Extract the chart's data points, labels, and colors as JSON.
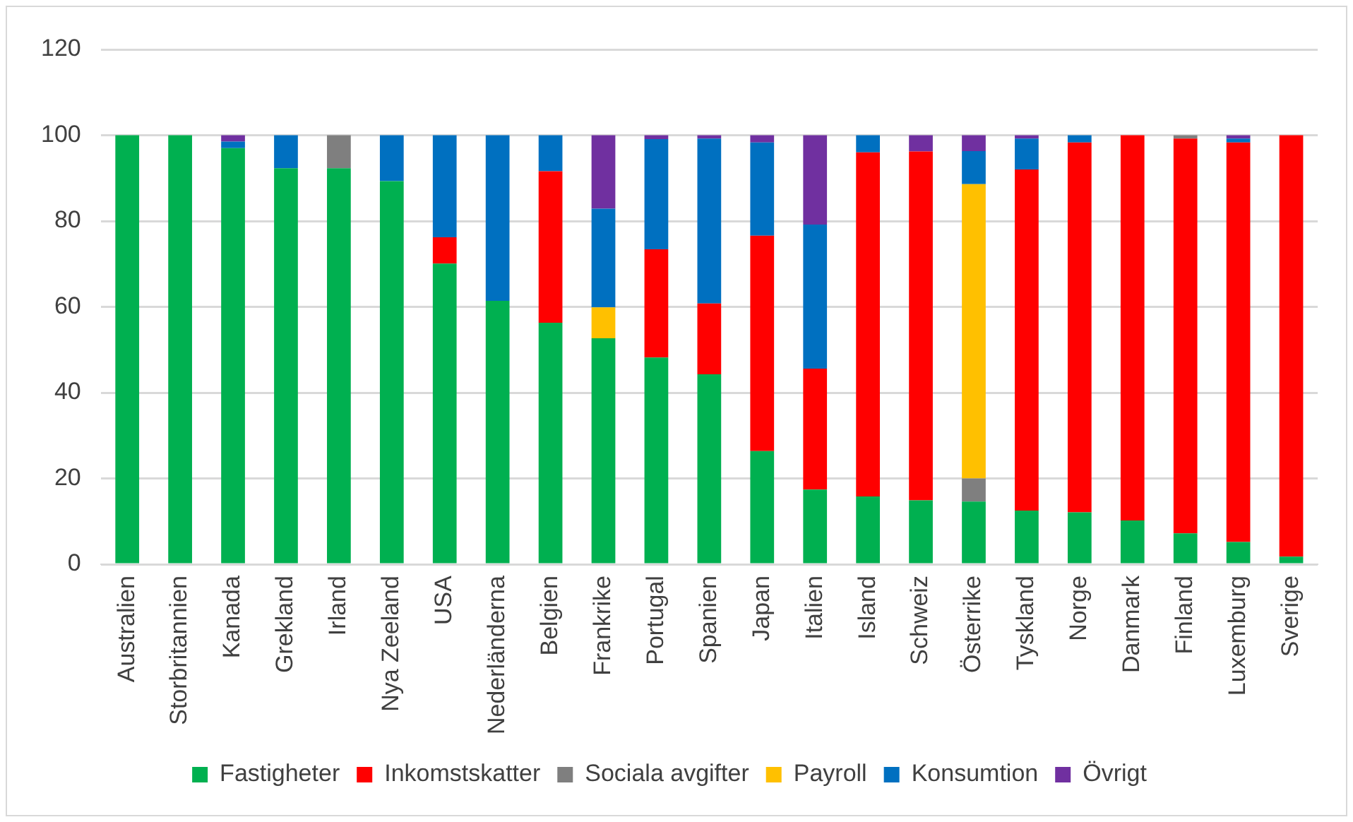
{
  "chart_data": {
    "type": "bar",
    "stacked": true,
    "categories": [
      "Australien",
      "Storbritannien",
      "Kanada",
      "Grekland",
      "Irland",
      "Nya Zeeland",
      "USA",
      "Nederländerna",
      "Belgien",
      "Frankrike",
      "Portugal",
      "Spanien",
      "Japan",
      "Italien",
      "Island",
      "Schweiz",
      "Österrike",
      "Tyskland",
      "Norge",
      "Danmark",
      "Finland",
      "Luxemburg",
      "Sverige"
    ],
    "series": [
      {
        "name": "Fastigheter",
        "color": "#00b050",
        "values": [
          100,
          100,
          97,
          92.3,
          92.3,
          89.3,
          70.1,
          61.4,
          56.3,
          52.7,
          48.2,
          44.3,
          26.4,
          17.4,
          15.8,
          14.9,
          14.6,
          12.5,
          12.1,
          10.2,
          7.2,
          5.2,
          1.8
        ]
      },
      {
        "name": "Inkomstskatter",
        "color": "#ff0000",
        "values": [
          0,
          0,
          0,
          0,
          0,
          0,
          6.1,
          0,
          35.3,
          0,
          25.2,
          16.5,
          50.2,
          28.2,
          80.2,
          81.3,
          0,
          79.5,
          86.2,
          89.8,
          92,
          93.1,
          98.2
        ]
      },
      {
        "name": "Sociala avgifter",
        "color": "#7f7f7f",
        "values": [
          0,
          0,
          0,
          0,
          7.7,
          0,
          0,
          0,
          0,
          0,
          0,
          0,
          0,
          0,
          0,
          0,
          5.4,
          0,
          0,
          0,
          0.8,
          0,
          0
        ]
      },
      {
        "name": "Payroll",
        "color": "#ffc000",
        "values": [
          0,
          0,
          0,
          0,
          0,
          0,
          0,
          0,
          0,
          7.2,
          0,
          0,
          0,
          0,
          0,
          0,
          68.6,
          0,
          0,
          0,
          0,
          0,
          0
        ]
      },
      {
        "name": "Konsumtion",
        "color": "#0070c0",
        "values": [
          0,
          0,
          1.5,
          7.7,
          0,
          10.7,
          23.8,
          38.6,
          8.4,
          23,
          25.7,
          38.4,
          21.7,
          33.6,
          4,
          0,
          7.7,
          7.2,
          1.7,
          0,
          0,
          0.9,
          0
        ]
      },
      {
        "name": "Övrigt",
        "color": "#7030a0",
        "values": [
          0,
          0,
          1.5,
          0,
          0,
          0,
          0,
          0,
          0,
          17.1,
          0.9,
          0.8,
          1.7,
          20.8,
          0,
          3.8,
          3.7,
          0.8,
          0,
          0,
          0,
          0.8,
          0
        ]
      }
    ],
    "ylim": [
      0,
      120
    ],
    "yticks": [
      0,
      20,
      40,
      60,
      80,
      100,
      120
    ],
    "grid": "y",
    "legend": "bottom"
  }
}
